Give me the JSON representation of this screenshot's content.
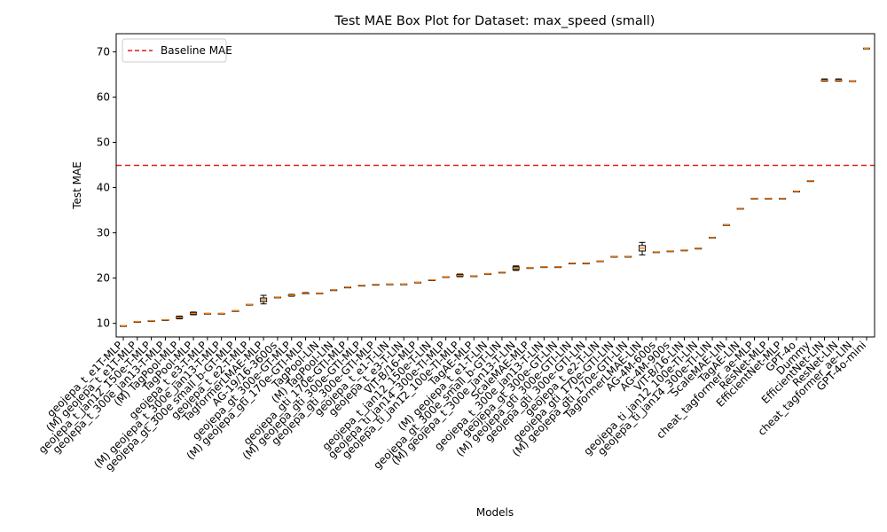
{
  "chart_data": {
    "type": "box",
    "title": "Test MAE Box Plot for Dataset: max_speed (small)",
    "xlabel": "Models",
    "ylabel": "Test MAE",
    "ylim": [
      7,
      74
    ],
    "yticks": [
      10,
      20,
      30,
      40,
      50,
      60,
      70
    ],
    "grid": false,
    "legend": {
      "position": "top-left",
      "entries": [
        "Baseline MAE"
      ]
    },
    "baseline": {
      "name": "Baseline MAE",
      "value": 44.9
    },
    "colors": {
      "baseline": "#e41a1c",
      "median": "#ff7f0e",
      "box": "#000000",
      "box_fill": "#ffffff"
    },
    "categories": [
      "geojepa_t_e1T-MLP",
      "(M) geojepa_t_e1T-MLP",
      "geojepa_t_jan12_150e-T-MLP",
      "geojepa_t_300e_jan13-T-MLP",
      "(M) TagPool-MLP",
      "TagPool-MLP",
      "geojepa_t_e3-T-MLP",
      "(M) geojepa_t_300e_jan13-T-MLP",
      "geojepa_gt_300e small_b-GT-MLP",
      "geojepa_t_e2-T-MLP",
      "TagformerLMAE-MLP",
      "AG-19/16-3600s",
      "geojepa_gt_300e-GT-MLP",
      "(M) geojepa_gti_170e-GTI-MLP",
      "TagPool-LIN",
      "(M) TagPool-LIN",
      "geojepa_gti_170e-GTI-MLP",
      "(M) geojepa_gti_300e-GTI-MLP",
      "geojepa_gti_300e-GTI-MLP",
      "geojepa_t_e1-T-LIN",
      "geojepa_t_e3-T-LIN",
      "VIT-B/16-MLP",
      "geojepa_t_jan12_150e-T-LIN",
      "geojepa_ti_jan14_300e-TI-MLP",
      "geojepa_ti_jan12_100e-TI-MLP",
      "TagAE-MLP",
      "(M) geojepa_t_e1-T-LIN",
      "geojepa_gt_300e_small_b-GT-LIN",
      "(M) geojepa_t_300e_jan13-T-LIN",
      "ScaleMAE-MLP",
      "geojepa_t_300e_jan13-T-LIN",
      "geojepa_gt_300e-GT-LIN",
      "(M) geojepa_gti_300e-GTI-LIN",
      "geojepa_gti_300e-GTI-LIN",
      "geojepa_t_e2-T-LIN",
      "geojepa_gti_170e-GTI-LIN",
      "(M) geojepa_gti_170e-GTI-LIN",
      "TagformerLMAE-LIN",
      "AG-4M-600s",
      "AG-4M-900s",
      "VIT-B/16-LIN",
      "geojepa_ti_jan12_100e-TI-LIN",
      "geojepa_ti_jan14_300e-TI-LIN",
      "ScaleMAE-LIN",
      "TagAE-LIN",
      "cheat_tagformer_ae-MLP",
      "ResNet-MLP",
      "EfficientNet-MLP",
      "GPT-4o",
      "Dummy",
      "EfficientNet-LIN",
      "ResNet-LIN",
      "cheat_tagformer_ae-LIN",
      "GPT-4o-mini"
    ],
    "series": [
      {
        "median": [
          9.5,
          10.4,
          10.6,
          10.8,
          11.3,
          12.2,
          12.2,
          12.2,
          12.8,
          14.2,
          15.2,
          15.8,
          16.2,
          16.6,
          16.7,
          17.4,
          18.0,
          18.4,
          18.6,
          18.7,
          18.7,
          19.1,
          19.6,
          20.3,
          20.6,
          20.5,
          21.0,
          21.3,
          22.2,
          22.3,
          22.5,
          22.5,
          23.3,
          23.3,
          23.8,
          24.8,
          24.8,
          26.6,
          25.8,
          26.0,
          26.2,
          26.6,
          29.0,
          31.8,
          35.4,
          37.6,
          37.6,
          37.6,
          39.2,
          41.5,
          63.7,
          63.7,
          63.6,
          70.8
        ],
        "q1": [
          9.5,
          10.4,
          10.6,
          10.8,
          11.1,
          12.0,
          12.2,
          12.2,
          12.8,
          14.2,
          14.8,
          15.8,
          16.1,
          16.5,
          16.7,
          17.4,
          18.0,
          18.4,
          18.6,
          18.7,
          18.7,
          19.1,
          19.6,
          20.3,
          20.4,
          20.5,
          21.0,
          21.3,
          21.9,
          22.3,
          22.5,
          22.5,
          23.3,
          23.3,
          23.8,
          24.8,
          24.8,
          26.0,
          25.8,
          26.0,
          26.2,
          26.6,
          29.0,
          31.8,
          35.4,
          37.6,
          37.6,
          37.6,
          39.2,
          41.5,
          63.6,
          63.6,
          63.6,
          70.8
        ],
        "q3": [
          9.5,
          10.4,
          10.6,
          10.8,
          11.5,
          12.4,
          12.2,
          12.2,
          12.8,
          14.2,
          15.6,
          15.8,
          16.3,
          16.7,
          16.7,
          17.4,
          18.0,
          18.4,
          18.6,
          18.7,
          18.7,
          19.1,
          19.6,
          20.3,
          20.8,
          20.5,
          21.0,
          21.3,
          22.5,
          22.3,
          22.5,
          22.5,
          23.3,
          23.3,
          23.8,
          24.8,
          24.8,
          27.2,
          25.8,
          26.0,
          26.2,
          26.6,
          29.0,
          31.8,
          35.4,
          37.6,
          37.6,
          37.6,
          39.2,
          41.5,
          63.8,
          63.8,
          63.6,
          70.8
        ],
        "whisker_low": [
          9.5,
          10.4,
          10.6,
          10.8,
          11.0,
          11.9,
          12.2,
          12.2,
          12.8,
          14.2,
          14.3,
          15.8,
          16.0,
          16.5,
          16.7,
          17.4,
          18.0,
          18.4,
          18.6,
          18.7,
          18.7,
          19.1,
          19.6,
          20.3,
          20.3,
          20.5,
          21.0,
          21.3,
          21.7,
          22.3,
          22.5,
          22.5,
          23.3,
          23.3,
          23.8,
          24.8,
          24.8,
          25.1,
          25.8,
          26.0,
          26.2,
          26.6,
          29.0,
          31.8,
          35.4,
          37.6,
          37.6,
          37.6,
          39.2,
          41.5,
          63.5,
          63.5,
          63.6,
          70.8
        ],
        "whisker_high": [
          9.5,
          10.4,
          10.6,
          10.8,
          11.6,
          12.5,
          12.2,
          12.2,
          12.8,
          14.2,
          16.2,
          15.8,
          16.4,
          16.8,
          16.7,
          17.4,
          18.0,
          18.4,
          18.6,
          18.7,
          18.7,
          19.1,
          19.6,
          20.3,
          20.9,
          20.5,
          21.0,
          21.3,
          22.7,
          22.3,
          22.5,
          22.5,
          23.3,
          23.3,
          23.8,
          24.8,
          24.8,
          27.9,
          25.8,
          26.0,
          26.2,
          26.6,
          29.0,
          31.8,
          35.4,
          37.6,
          37.6,
          37.6,
          39.2,
          41.5,
          64.0,
          64.0,
          63.6,
          70.8
        ]
      }
    ]
  }
}
